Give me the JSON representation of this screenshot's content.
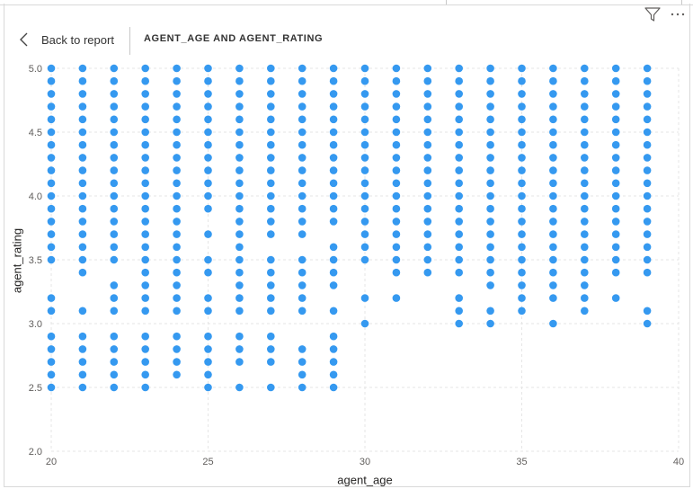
{
  "header": {
    "back_label": "Back to report",
    "title": "AGENT_AGE AND AGENT_RATING"
  },
  "icons": {
    "filter": "filter-icon",
    "more": "more-options-icon",
    "back": "chevron-left-icon"
  },
  "colors": {
    "marker": "#3599f0",
    "grid": "#e6e6e6",
    "text": "#605e5c"
  },
  "chart_data": {
    "type": "scatter",
    "xlabel": "agent_age",
    "ylabel": "agent_rating",
    "xlim": [
      20,
      40
    ],
    "ylim": [
      2.0,
      5.0
    ],
    "xticks": [
      20,
      25,
      30,
      35,
      40
    ],
    "yticks": [
      2.0,
      2.5,
      3.0,
      3.5,
      4.0,
      4.5,
      5.0
    ],
    "grid": true,
    "points_by_age": [
      {
        "x": 20,
        "y": [
          5.0,
          4.9,
          4.8,
          4.7,
          4.6,
          4.5,
          4.4,
          4.3,
          4.2,
          4.1,
          4.0,
          3.9,
          3.8,
          3.7,
          3.6,
          3.5,
          3.2,
          3.1,
          2.9,
          2.8,
          2.7,
          2.6,
          2.5
        ]
      },
      {
        "x": 21,
        "y": [
          5.0,
          4.9,
          4.8,
          4.7,
          4.6,
          4.5,
          4.4,
          4.3,
          4.2,
          4.1,
          4.0,
          3.9,
          3.8,
          3.7,
          3.6,
          3.5,
          3.4,
          3.1,
          2.9,
          2.8,
          2.7,
          2.6,
          2.5
        ]
      },
      {
        "x": 22,
        "y": [
          5.0,
          4.9,
          4.8,
          4.7,
          4.6,
          4.5,
          4.4,
          4.3,
          4.2,
          4.1,
          4.0,
          3.9,
          3.8,
          3.7,
          3.6,
          3.5,
          3.3,
          3.2,
          3.1,
          2.9,
          2.8,
          2.7,
          2.6,
          2.5
        ]
      },
      {
        "x": 23,
        "y": [
          5.0,
          4.9,
          4.8,
          4.7,
          4.6,
          4.5,
          4.4,
          4.3,
          4.2,
          4.1,
          4.0,
          3.9,
          3.8,
          3.7,
          3.6,
          3.5,
          3.4,
          3.3,
          3.2,
          3.1,
          2.9,
          2.8,
          2.7,
          2.6,
          2.5
        ]
      },
      {
        "x": 24,
        "y": [
          5.0,
          4.9,
          4.8,
          4.7,
          4.6,
          4.5,
          4.4,
          4.3,
          4.2,
          4.1,
          4.0,
          3.9,
          3.8,
          3.7,
          3.6,
          3.5,
          3.4,
          3.3,
          3.2,
          3.1,
          2.9,
          2.8,
          2.7,
          2.6
        ]
      },
      {
        "x": 25,
        "y": [
          5.0,
          4.9,
          4.8,
          4.7,
          4.6,
          4.5,
          4.4,
          4.3,
          4.2,
          4.1,
          4.0,
          3.9,
          3.7,
          3.5,
          3.4,
          3.2,
          3.1,
          2.9,
          2.8,
          2.7,
          2.6,
          2.5
        ]
      },
      {
        "x": 26,
        "y": [
          5.0,
          4.9,
          4.8,
          4.7,
          4.6,
          4.5,
          4.4,
          4.3,
          4.2,
          4.1,
          4.0,
          3.9,
          3.8,
          3.7,
          3.6,
          3.5,
          3.4,
          3.3,
          3.2,
          3.1,
          2.9,
          2.8,
          2.7,
          2.5
        ]
      },
      {
        "x": 27,
        "y": [
          5.0,
          4.9,
          4.8,
          4.7,
          4.6,
          4.5,
          4.4,
          4.3,
          4.2,
          4.1,
          4.0,
          3.9,
          3.8,
          3.7,
          3.5,
          3.4,
          3.3,
          3.2,
          3.1,
          2.9,
          2.8,
          2.7,
          2.5
        ]
      },
      {
        "x": 28,
        "y": [
          5.0,
          4.9,
          4.8,
          4.7,
          4.6,
          4.5,
          4.4,
          4.3,
          4.2,
          4.1,
          4.0,
          3.9,
          3.8,
          3.7,
          3.5,
          3.4,
          3.3,
          3.2,
          3.1,
          2.8,
          2.7,
          2.6,
          2.5
        ]
      },
      {
        "x": 29,
        "y": [
          5.0,
          4.9,
          4.8,
          4.7,
          4.6,
          4.5,
          4.4,
          4.3,
          4.2,
          4.1,
          4.0,
          3.9,
          3.8,
          3.6,
          3.5,
          3.4,
          3.3,
          3.1,
          2.9,
          2.8,
          2.7,
          2.6,
          2.5
        ]
      },
      {
        "x": 30,
        "y": [
          5.0,
          4.9,
          4.8,
          4.7,
          4.6,
          4.5,
          4.4,
          4.3,
          4.2,
          4.1,
          4.0,
          3.9,
          3.8,
          3.7,
          3.6,
          3.5,
          3.2,
          3.0
        ]
      },
      {
        "x": 31,
        "y": [
          5.0,
          4.9,
          4.8,
          4.7,
          4.6,
          4.5,
          4.4,
          4.3,
          4.2,
          4.1,
          4.0,
          3.9,
          3.8,
          3.7,
          3.6,
          3.5,
          3.4,
          3.2
        ]
      },
      {
        "x": 32,
        "y": [
          5.0,
          4.9,
          4.8,
          4.7,
          4.6,
          4.5,
          4.4,
          4.3,
          4.2,
          4.1,
          4.0,
          3.9,
          3.8,
          3.7,
          3.6,
          3.5,
          3.4
        ]
      },
      {
        "x": 33,
        "y": [
          5.0,
          4.9,
          4.8,
          4.7,
          4.6,
          4.5,
          4.4,
          4.3,
          4.2,
          4.1,
          4.0,
          3.9,
          3.8,
          3.7,
          3.6,
          3.5,
          3.4,
          3.2,
          3.1,
          3.0
        ]
      },
      {
        "x": 34,
        "y": [
          5.0,
          4.9,
          4.8,
          4.7,
          4.6,
          4.5,
          4.4,
          4.3,
          4.2,
          4.1,
          4.0,
          3.9,
          3.8,
          3.7,
          3.6,
          3.5,
          3.4,
          3.3,
          3.1,
          3.0
        ]
      },
      {
        "x": 35,
        "y": [
          5.0,
          4.9,
          4.8,
          4.7,
          4.6,
          4.5,
          4.4,
          4.3,
          4.2,
          4.1,
          4.0,
          3.9,
          3.8,
          3.7,
          3.6,
          3.5,
          3.4,
          3.3,
          3.2,
          3.1
        ]
      },
      {
        "x": 36,
        "y": [
          5.0,
          4.9,
          4.8,
          4.7,
          4.6,
          4.5,
          4.4,
          4.3,
          4.2,
          4.1,
          4.0,
          3.9,
          3.8,
          3.7,
          3.6,
          3.5,
          3.4,
          3.3,
          3.2,
          3.0
        ]
      },
      {
        "x": 37,
        "y": [
          5.0,
          4.9,
          4.8,
          4.7,
          4.6,
          4.5,
          4.4,
          4.3,
          4.2,
          4.1,
          4.0,
          3.9,
          3.8,
          3.7,
          3.6,
          3.5,
          3.4,
          3.3,
          3.2,
          3.1
        ]
      },
      {
        "x": 38,
        "y": [
          5.0,
          4.9,
          4.8,
          4.7,
          4.6,
          4.5,
          4.4,
          4.3,
          4.2,
          4.1,
          4.0,
          3.9,
          3.8,
          3.7,
          3.6,
          3.5,
          3.4,
          3.2
        ]
      },
      {
        "x": 39,
        "y": [
          5.0,
          4.9,
          4.8,
          4.7,
          4.6,
          4.5,
          4.4,
          4.3,
          4.2,
          4.1,
          4.0,
          3.9,
          3.8,
          3.7,
          3.6,
          3.5,
          3.4,
          3.1,
          3.0
        ]
      }
    ]
  }
}
